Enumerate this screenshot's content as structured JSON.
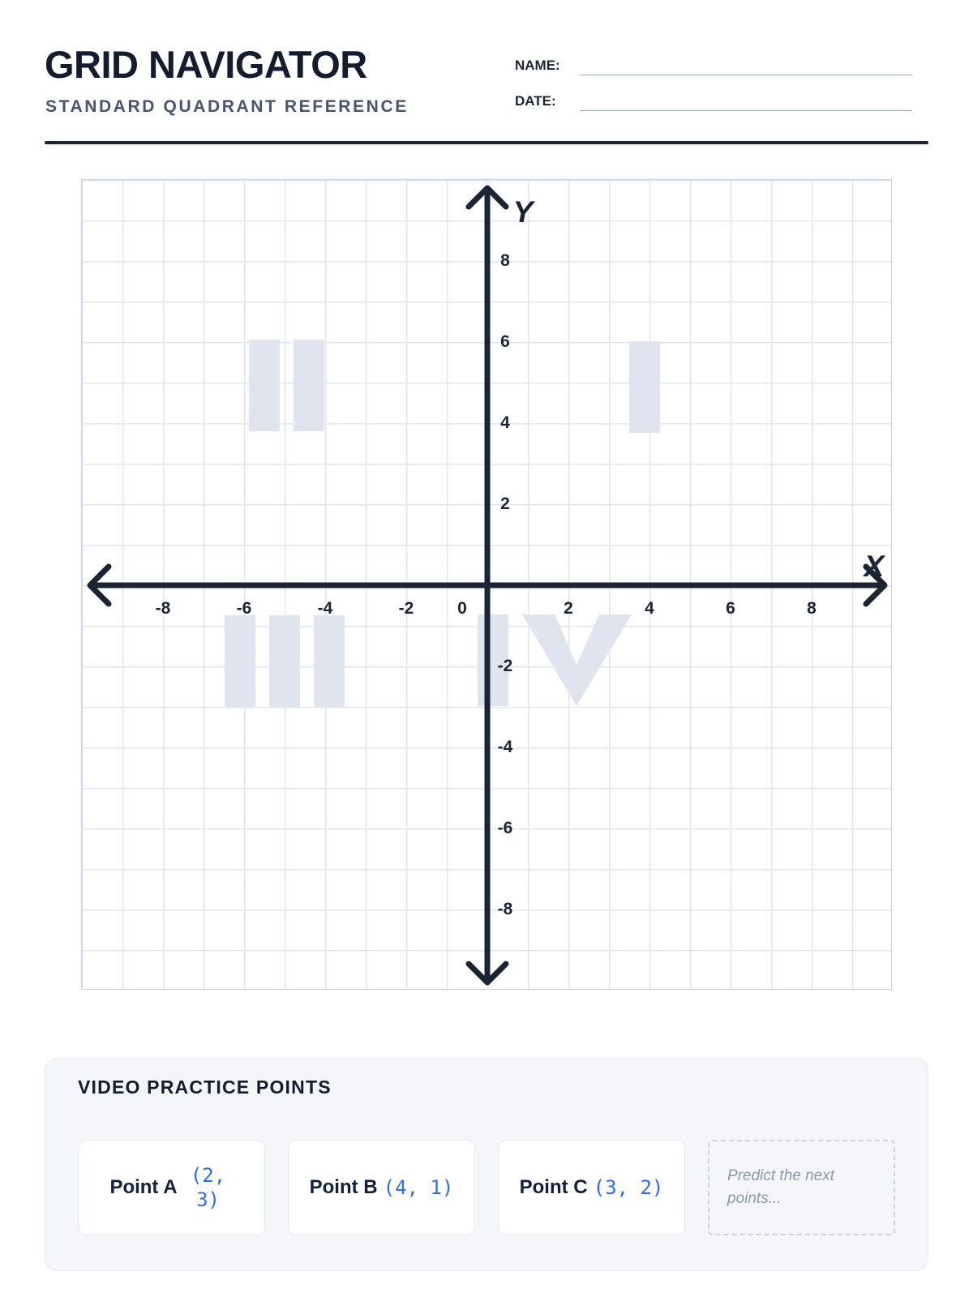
{
  "header": {
    "title": "GRID NAVIGATOR",
    "subtitle": "STANDARD QUADRANT REFERENCE",
    "name_label": "NAME:",
    "date_label": "DATE:",
    "name_value": "",
    "date_value": ""
  },
  "graph": {
    "x_axis_label": "X",
    "y_axis_label": "Y",
    "origin_label": "0",
    "x_ticks": [
      -8,
      -6,
      -4,
      -2,
      2,
      4,
      6,
      8
    ],
    "y_ticks": [
      8,
      6,
      4,
      2,
      -2,
      -4,
      -6,
      -8
    ],
    "units_per_cell": 1,
    "axis_range": [
      -10,
      10
    ],
    "quadrants": [
      {
        "numeral": "I"
      },
      {
        "numeral": "II"
      },
      {
        "numeral": "III"
      },
      {
        "numeral": "IV"
      }
    ]
  },
  "practice": {
    "title": "VIDEO PRACTICE POINTS",
    "points": [
      {
        "label": "Point A",
        "coords": "(2, 3)"
      },
      {
        "label": "Point B",
        "coords": "(4, 1)"
      },
      {
        "label": "Point C",
        "coords": "(3, 2)"
      }
    ],
    "placeholder": "Predict the next points..."
  },
  "colors": {
    "ink": "#1a2433",
    "title": "#141d30",
    "subtitle": "#47566f",
    "grid_line": "#e0e6f1",
    "quadrant_numeral": "#dfe4ee",
    "coord_blue": "#2f6af5",
    "panel_bg": "#f4f6fa",
    "placeholder_text": "#8b99ae"
  }
}
